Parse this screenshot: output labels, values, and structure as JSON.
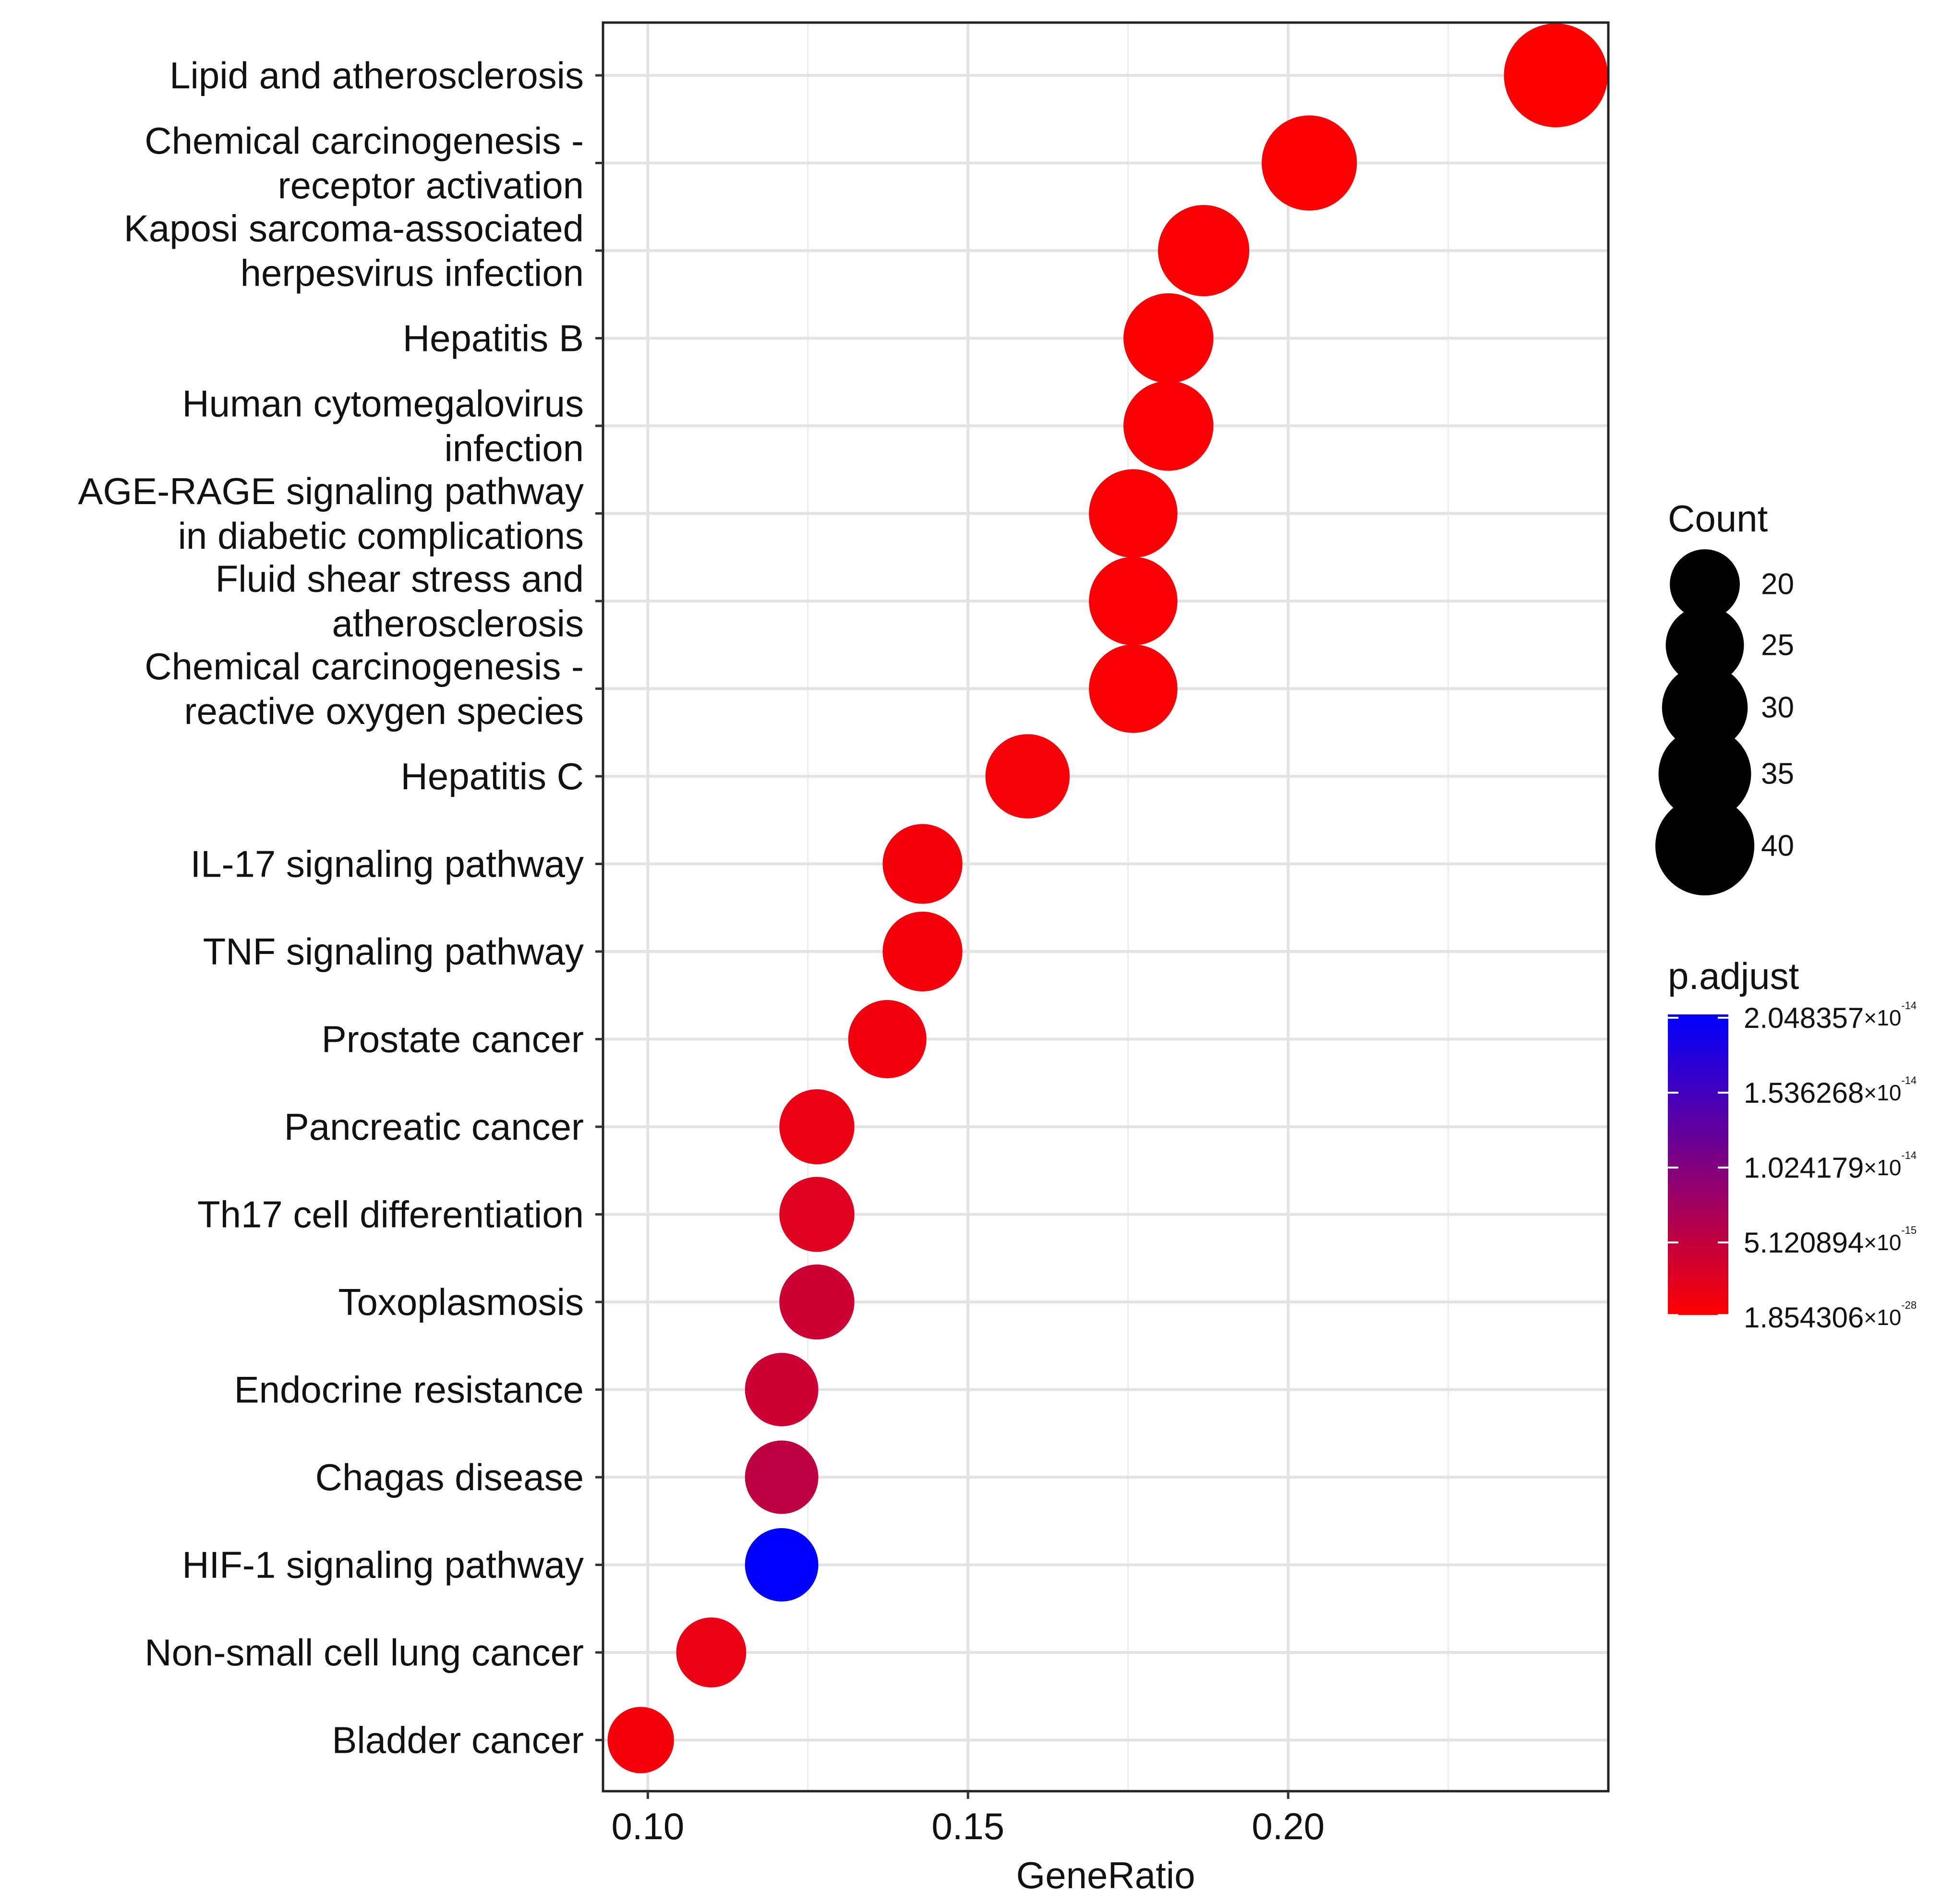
{
  "chart_data": {
    "type": "scatter",
    "subtype": "dot-plot",
    "title": "",
    "xlabel": "GeneRatio",
    "ylabel": "",
    "xlim": [
      0.093,
      0.25
    ],
    "xticks": [
      0.1,
      0.15,
      0.2
    ],
    "xtick_labels": [
      "0.10",
      "0.15",
      "0.20"
    ],
    "grid": true,
    "categories": [
      [
        "Lipid and atherosclerosis"
      ],
      [
        "Chemical carcinogenesis -",
        "receptor activation"
      ],
      [
        "Kaposi sarcoma-associated",
        "herpesvirus infection"
      ],
      [
        "Hepatitis B"
      ],
      [
        "Human cytomegalovirus",
        "infection"
      ],
      [
        "AGE-RAGE signaling pathway",
        "in diabetic complications"
      ],
      [
        "Fluid shear stress and",
        "atherosclerosis"
      ],
      [
        "Chemical carcinogenesis -",
        "reactive oxygen species"
      ],
      [
        "Hepatitis C"
      ],
      [
        "IL-17 signaling pathway"
      ],
      [
        "TNF signaling pathway"
      ],
      [
        "Prostate cancer"
      ],
      [
        "Pancreatic cancer"
      ],
      [
        "Th17 cell differentiation"
      ],
      [
        "Toxoplasmosis"
      ],
      [
        "Endocrine resistance"
      ],
      [
        "Chagas disease"
      ],
      [
        "HIF-1 signaling pathway"
      ],
      [
        "Non-small cell lung cancer"
      ],
      [
        "Bladder cancer"
      ]
    ],
    "gene_ratio": [
      0.2418,
      0.2033,
      0.1868,
      0.1813,
      0.1813,
      0.1758,
      0.1758,
      0.1758,
      0.1593,
      0.1429,
      0.1429,
      0.1374,
      0.1264,
      0.1264,
      0.1264,
      0.1209,
      0.1209,
      0.1209,
      0.1099,
      0.0989
    ],
    "count": [
      44,
      37,
      34,
      33,
      33,
      32,
      32,
      32,
      29,
      26,
      26,
      25,
      23,
      23,
      23,
      22,
      22,
      22,
      20,
      18
    ],
    "color_value": [
      0.0,
      0.01,
      0.02,
      0.01,
      0.02,
      0.02,
      0.02,
      0.02,
      0.03,
      0.04,
      0.04,
      0.05,
      0.08,
      0.12,
      0.2,
      0.2,
      0.26,
      1.0,
      0.08,
      0.04
    ],
    "size_legend": {
      "title": "Count",
      "values": [
        20,
        25,
        30,
        35,
        40
      ],
      "labels": [
        "20",
        "25",
        "30",
        "35",
        "40"
      ]
    },
    "color_legend": {
      "title": "p.adjust",
      "low_color": "#FF0000",
      "high_color": "#0000FF",
      "ticks": [
        {
          "mantissa": "2.048357",
          "exp": "-14",
          "value": 1.0
        },
        {
          "mantissa": "1.536268",
          "exp": "-14",
          "value": 0.75
        },
        {
          "mantissa": "1.024179",
          "exp": "-14",
          "value": 0.5
        },
        {
          "mantissa": "5.120894",
          "exp": "-15",
          "value": 0.25
        },
        {
          "mantissa": "1.854306",
          "exp": "-28",
          "value": 0.0
        }
      ],
      "times_sign": "×10"
    }
  }
}
